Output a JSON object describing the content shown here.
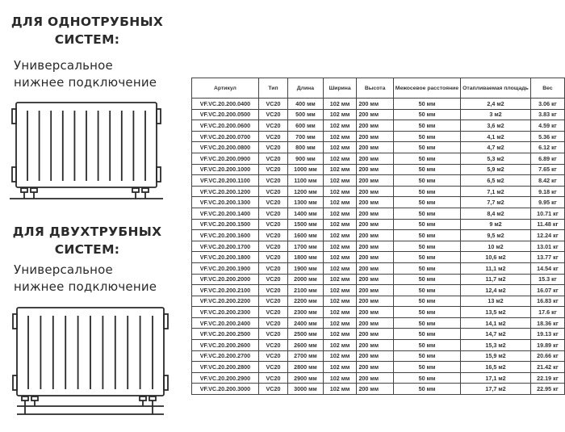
{
  "section1": {
    "title_line1": "ДЛЯ ОДНОТРУБНЫХ",
    "title_line2": "СИСТЕМ:",
    "subtitle_line1": "Универсальное",
    "subtitle_line2": "нижнее подключение"
  },
  "section2": {
    "title_line1": "ДЛЯ ДВУХТРУБНЫХ",
    "title_line2": "СИСТЕМ:",
    "subtitle_line1": "Универсальное",
    "subtitle_line2": "нижнее подключение"
  },
  "table": {
    "headers": [
      "Артикул",
      "Тип",
      "Длина",
      "Ширина",
      "Высота",
      "Межосевое расстояние",
      "Отапливаемая площадь",
      "Вес"
    ],
    "rows": [
      [
        "VF.VC.20.200.0400",
        "VC20",
        "400 мм",
        "102 мм",
        "200 мм",
        "50 мм",
        "2,4 м2",
        "3.06 кг"
      ],
      [
        "VF.VC.20.200.0500",
        "VC20",
        "500 мм",
        "102 мм",
        "200 мм",
        "50 мм",
        "3 м2",
        "3.83 кг"
      ],
      [
        "VF.VC.20.200.0600",
        "VC20",
        "600 мм",
        "102 мм",
        "200 мм",
        "50 мм",
        "3,6 м2",
        "4.59 кг"
      ],
      [
        "VF.VC.20.200.0700",
        "VC20",
        "700 мм",
        "102 мм",
        "200 мм",
        "50 мм",
        "4,1 м2",
        "5.36 кг"
      ],
      [
        "VF.VC.20.200.0800",
        "VC20",
        "800 мм",
        "102 мм",
        "200 мм",
        "50 мм",
        "4,7 м2",
        "6.12 кг"
      ],
      [
        "VF.VC.20.200.0900",
        "VC20",
        "900 мм",
        "102 мм",
        "200 мм",
        "50 мм",
        "5,3 м2",
        "6.89 кг"
      ],
      [
        "VF.VC.20.200.1000",
        "VC20",
        "1000 мм",
        "102 мм",
        "200 мм",
        "50 мм",
        "5,9 м2",
        "7.65 кг"
      ],
      [
        "VF.VC.20.200.1100",
        "VC20",
        "1100 мм",
        "102 мм",
        "200 мм",
        "50 мм",
        "6,5 м2",
        "8.42 кг"
      ],
      [
        "VF.VC.20.200.1200",
        "VC20",
        "1200 мм",
        "102 мм",
        "200 мм",
        "50 мм",
        "7,1 м2",
        "9.18 кг"
      ],
      [
        "VF.VC.20.200.1300",
        "VC20",
        "1300 мм",
        "102 мм",
        "200 мм",
        "50 мм",
        "7,7 м2",
        "9.95 кг"
      ],
      [
        "VF.VC.20.200.1400",
        "VC20",
        "1400 мм",
        "102 мм",
        "200 мм",
        "50 мм",
        "8,4 м2",
        "10.71 кг"
      ],
      [
        "VF.VC.20.200.1500",
        "VC20",
        "1500 мм",
        "102 мм",
        "200 мм",
        "50 мм",
        "9 м2",
        "11.48 кг"
      ],
      [
        "VF.VC.20.200.1600",
        "VC20",
        "1600 мм",
        "102 мм",
        "200 мм",
        "50 мм",
        "9,5 м2",
        "12.24 кг"
      ],
      [
        "VF.VC.20.200.1700",
        "VC20",
        "1700 мм",
        "102 мм",
        "200 мм",
        "50 мм",
        "10 м2",
        "13.01 кг"
      ],
      [
        "VF.VC.20.200.1800",
        "VC20",
        "1800 мм",
        "102 мм",
        "200 мм",
        "50 мм",
        "10,6 м2",
        "13.77 кг"
      ],
      [
        "VF.VC.20.200.1900",
        "VC20",
        "1900 мм",
        "102 мм",
        "200 мм",
        "50 мм",
        "11,1 м2",
        "14.54 кг"
      ],
      [
        "VF.VC.20.200.2000",
        "VC20",
        "2000 мм",
        "102 мм",
        "200 мм",
        "50 мм",
        "11,7 м2",
        "15.3 кг"
      ],
      [
        "VF.VC.20.200.2100",
        "VC20",
        "2100 мм",
        "102 мм",
        "200 мм",
        "50 мм",
        "12,4 м2",
        "16.07 кг"
      ],
      [
        "VF.VC.20.200.2200",
        "VC20",
        "2200 мм",
        "102 мм",
        "200 мм",
        "50 мм",
        "13 м2",
        "16.83 кг"
      ],
      [
        "VF.VC.20.200.2300",
        "VC20",
        "2300 мм",
        "102 мм",
        "200 мм",
        "50 мм",
        "13,5 м2",
        "17.6 кг"
      ],
      [
        "VF.VC.20.200.2400",
        "VC20",
        "2400 мм",
        "102 мм",
        "200 мм",
        "50 мм",
        "14,1 м2",
        "18.36 кг"
      ],
      [
        "VF.VC.20.200.2500",
        "VC20",
        "2500 мм",
        "102 мм",
        "200 мм",
        "50 мм",
        "14,7 м2",
        "19.13 кг"
      ],
      [
        "VF.VC.20.200.2600",
        "VC20",
        "2600 мм",
        "102 мм",
        "200 мм",
        "50 мм",
        "15,3 м2",
        "19.89 кг"
      ],
      [
        "VF.VC.20.200.2700",
        "VC20",
        "2700 мм",
        "102 мм",
        "200 мм",
        "50 мм",
        "15,9 м2",
        "20.66 кг"
      ],
      [
        "VF.VC.20.200.2800",
        "VC20",
        "2800 мм",
        "102 мм",
        "200 мм",
        "50 мм",
        "16,5 м2",
        "21.42 кг"
      ],
      [
        "VF.VC.20.200.2900",
        "VC20",
        "2900 мм",
        "102 мм",
        "200 мм",
        "50 мм",
        "17,1 м2",
        "22.19 кг"
      ],
      [
        "VF.VC.20.200.3000",
        "VC20",
        "3000 мм",
        "102 мм",
        "200 мм",
        "50 мм",
        "17,7 м2",
        "22.95 кг"
      ]
    ]
  }
}
